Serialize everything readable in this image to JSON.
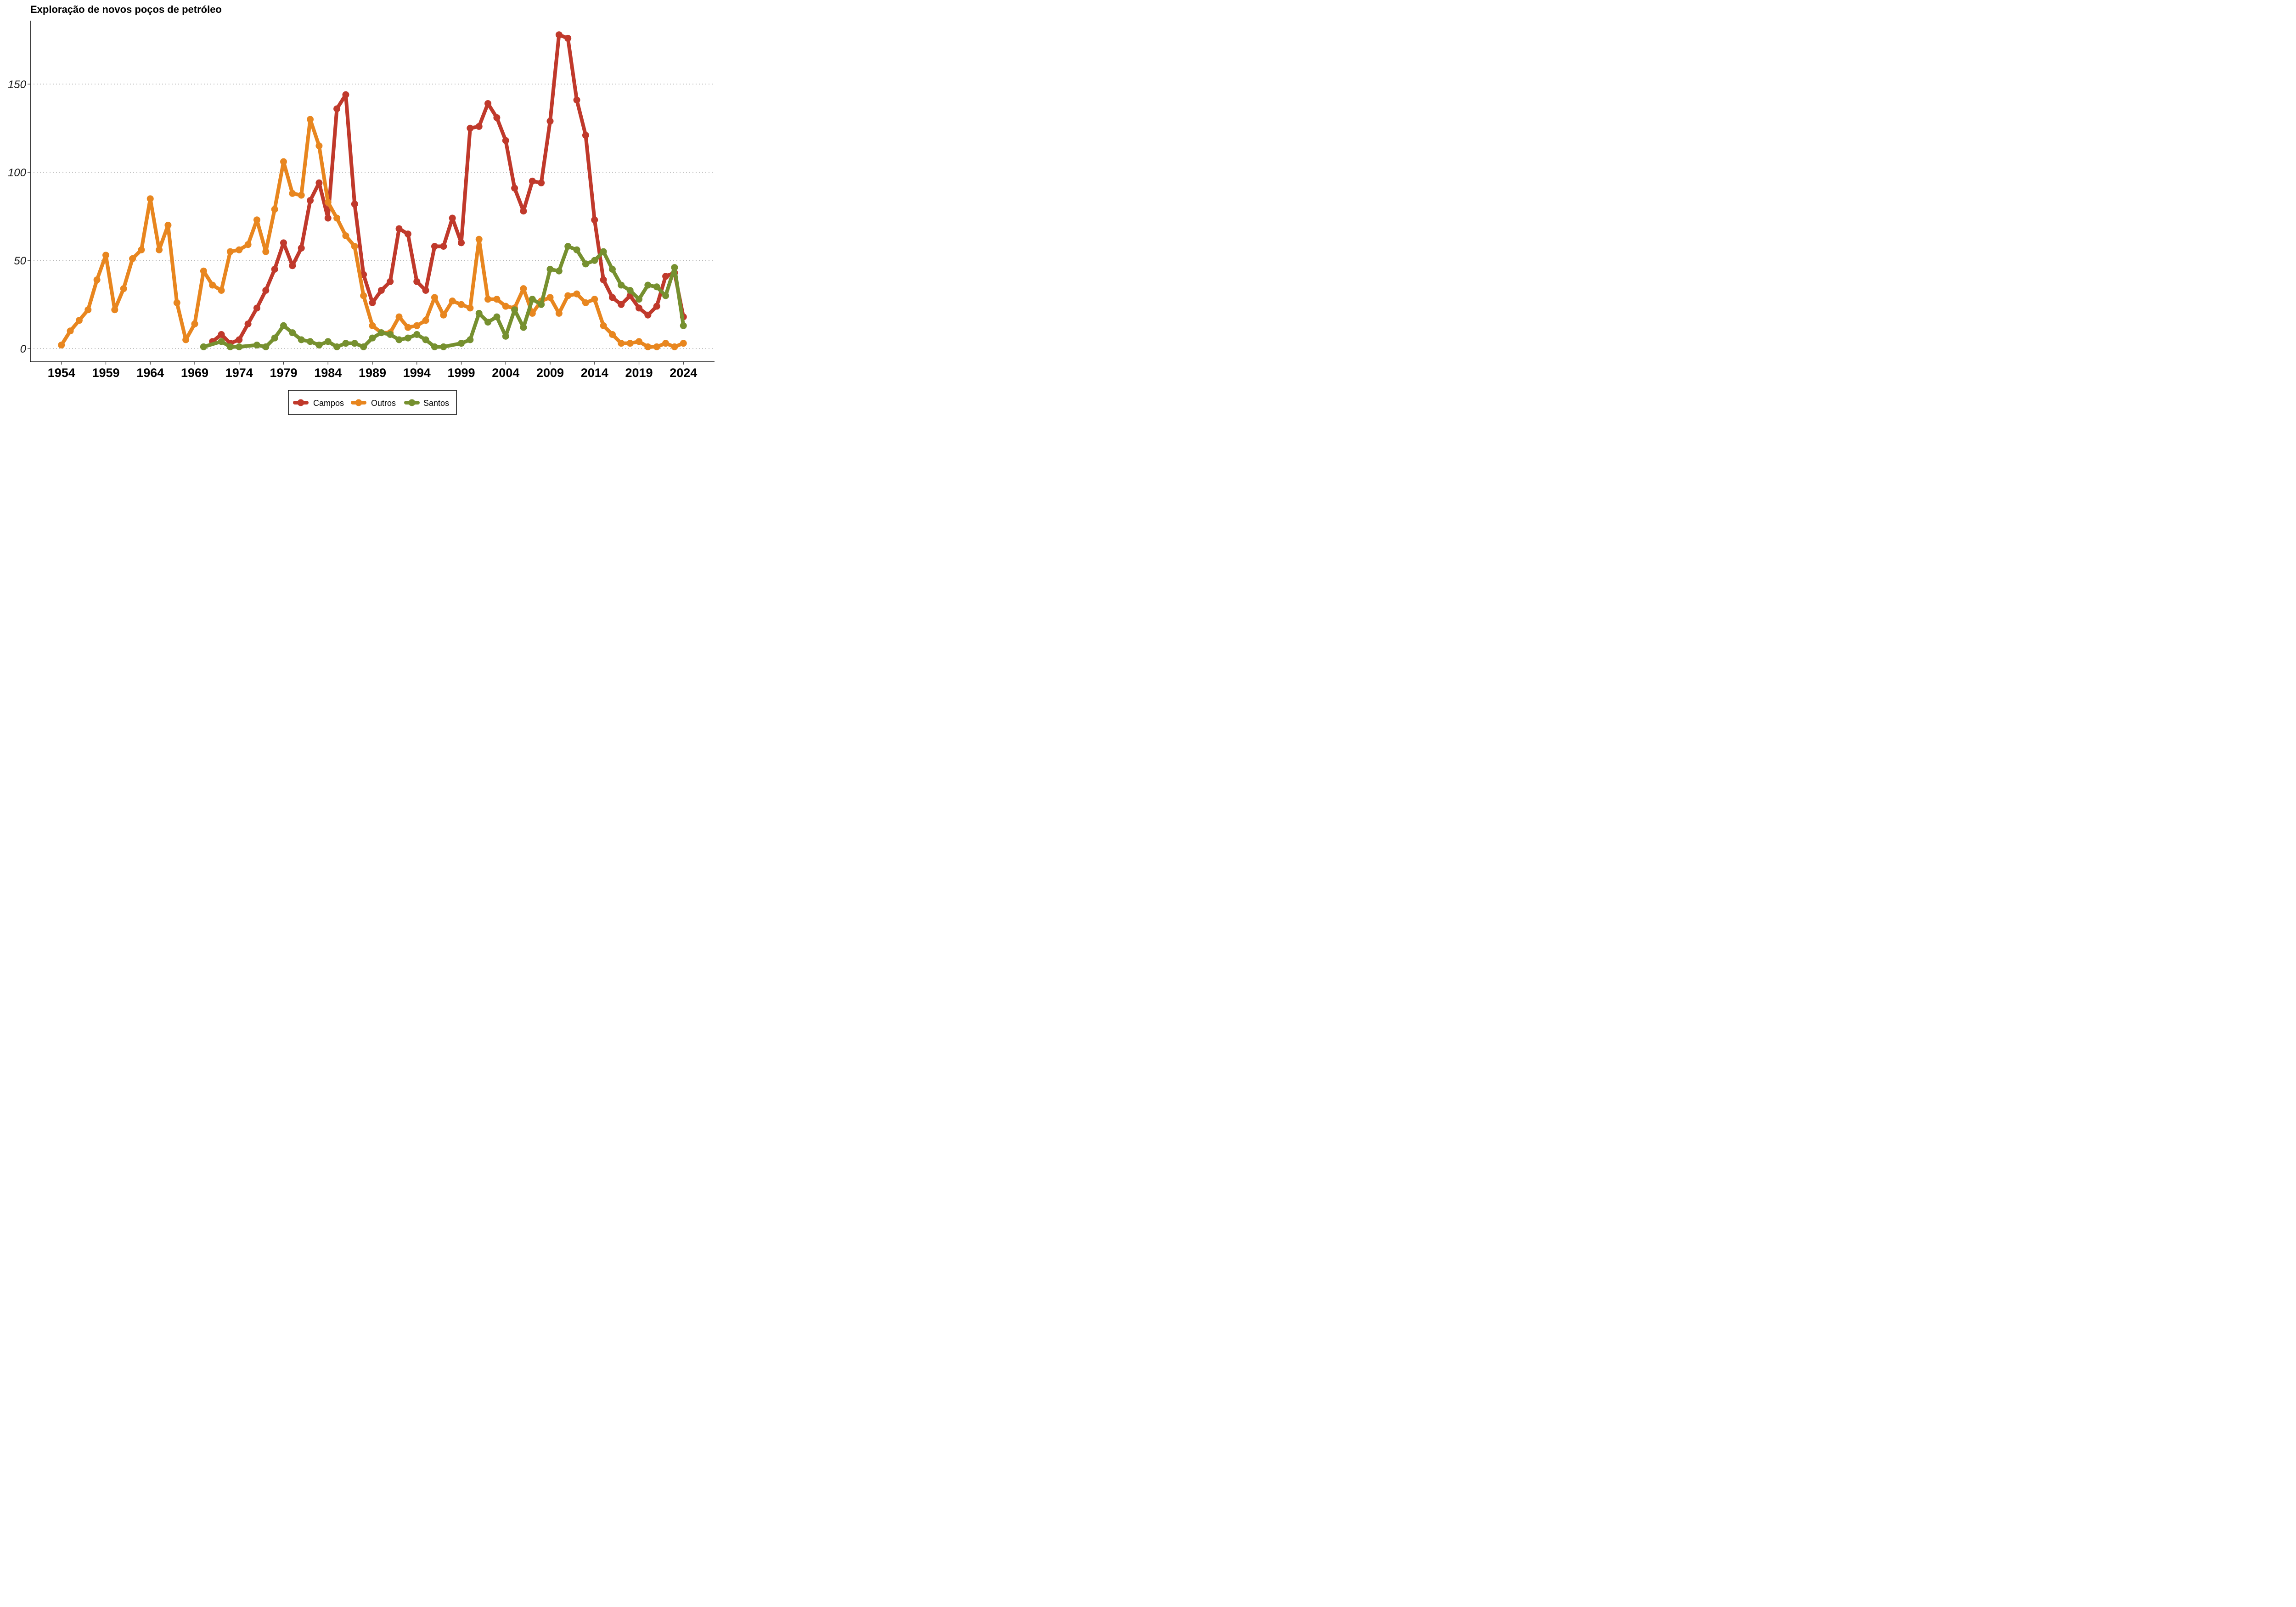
{
  "chart_data": {
    "type": "line",
    "title": "Exploração de novos poços de petróleo",
    "xlabel": "",
    "ylabel": "",
    "xlim": [
      1950.5,
      1527.5
    ],
    "ylim": [
      -7.5,
      186
    ],
    "yticks": [
      0,
      50,
      100,
      150
    ],
    "xticks": [
      1954,
      1959,
      1964,
      1969,
      1974,
      1979,
      1984,
      1989,
      1994,
      1999,
      2004,
      2009,
      2014,
      2019,
      2024
    ],
    "grid": "horizontal dotted",
    "legend_position": "bottom",
    "series": [
      {
        "name": "Campos",
        "color": "#c0392b",
        "x": [
          1971,
          1972,
          1973,
          1974,
          1975,
          1976,
          1977,
          1978,
          1979,
          1980,
          1981,
          1982,
          1983,
          1984,
          1985,
          1986,
          1987,
          1988,
          1989,
          1990,
          1991,
          1992,
          1993,
          1994,
          1995,
          1996,
          1997,
          1998,
          1999,
          2000,
          2001,
          2002,
          2003,
          2004,
          2005,
          2006,
          2007,
          2008,
          2009,
          2010,
          2011,
          2012,
          2013,
          2014,
          2015,
          2016,
          2017,
          2018,
          2019,
          2020,
          2021,
          2022,
          2023,
          2024
        ],
        "values": [
          4,
          8,
          3,
          5,
          14,
          23,
          33,
          45,
          60,
          47,
          57,
          84,
          94,
          74,
          136,
          144,
          82,
          42,
          26,
          33,
          38,
          68,
          65,
          38,
          33,
          58,
          58,
          74,
          60,
          125,
          126,
          139,
          131,
          118,
          91,
          78,
          95,
          94,
          129,
          178,
          176,
          141,
          121,
          73,
          39,
          29,
          25,
          30,
          23,
          19,
          24,
          41,
          43,
          18
        ]
      },
      {
        "name": "Outros",
        "color": "#e8861f",
        "x": [
          1954,
          1955,
          1956,
          1957,
          1958,
          1959,
          1960,
          1961,
          1962,
          1963,
          1964,
          1965,
          1966,
          1967,
          1968,
          1969,
          1970,
          1971,
          1972,
          1973,
          1974,
          1975,
          1976,
          1977,
          1978,
          1979,
          1980,
          1981,
          1982,
          1983,
          1984,
          1985,
          1986,
          1987,
          1988,
          1989,
          1990,
          1991,
          1992,
          1993,
          1994,
          1995,
          1996,
          1997,
          1998,
          1999,
          2000,
          2001,
          2002,
          2003,
          2004,
          2005,
          2006,
          2007,
          2008,
          2009,
          2010,
          2011,
          2012,
          2013,
          2014,
          2015,
          2016,
          2017,
          2018,
          2019,
          2020,
          2021,
          2022,
          2023,
          2024
        ],
        "values": [
          2,
          10,
          16,
          22,
          39,
          53,
          22,
          34,
          51,
          56,
          85,
          56,
          70,
          26,
          5,
          14,
          44,
          36,
          33,
          55,
          56,
          59,
          73,
          55,
          79,
          106,
          88,
          87,
          130,
          115,
          83,
          74,
          64,
          58,
          30,
          13,
          9,
          9,
          18,
          12,
          13,
          16,
          29,
          19,
          27,
          25,
          23,
          62,
          28,
          28,
          24,
          23,
          34,
          20,
          27,
          29,
          20,
          30,
          31,
          26,
          28,
          13,
          8,
          3,
          3,
          4,
          1,
          1,
          3,
          1,
          3
        ]
      },
      {
        "name": "Santos",
        "color": "#76902f",
        "x": [
          1970,
          1972,
          1973,
          1974,
          1976,
          1977,
          1978,
          1979,
          1980,
          1981,
          1982,
          1983,
          1984,
          1985,
          1986,
          1987,
          1988,
          1989,
          1990,
          1991,
          1992,
          1993,
          1994,
          1995,
          1996,
          1997,
          1999,
          2000,
          2001,
          2002,
          2003,
          2004,
          2005,
          2006,
          2007,
          2008,
          2009,
          2010,
          2011,
          2012,
          2013,
          2014,
          2015,
          2016,
          2017,
          2018,
          2019,
          2020,
          2021,
          2022,
          2023,
          2024
        ],
        "values": [
          1,
          4,
          1,
          1,
          2,
          1,
          6,
          13,
          9,
          5,
          4,
          2,
          4,
          1,
          3,
          3,
          1,
          6,
          9,
          8,
          5,
          6,
          8,
          5,
          1,
          1,
          3,
          5,
          20,
          15,
          18,
          7,
          22,
          12,
          28,
          25,
          45,
          44,
          58,
          56,
          48,
          50,
          55,
          45,
          36,
          33,
          28,
          36,
          35,
          30,
          46,
          13
        ]
      }
    ]
  }
}
